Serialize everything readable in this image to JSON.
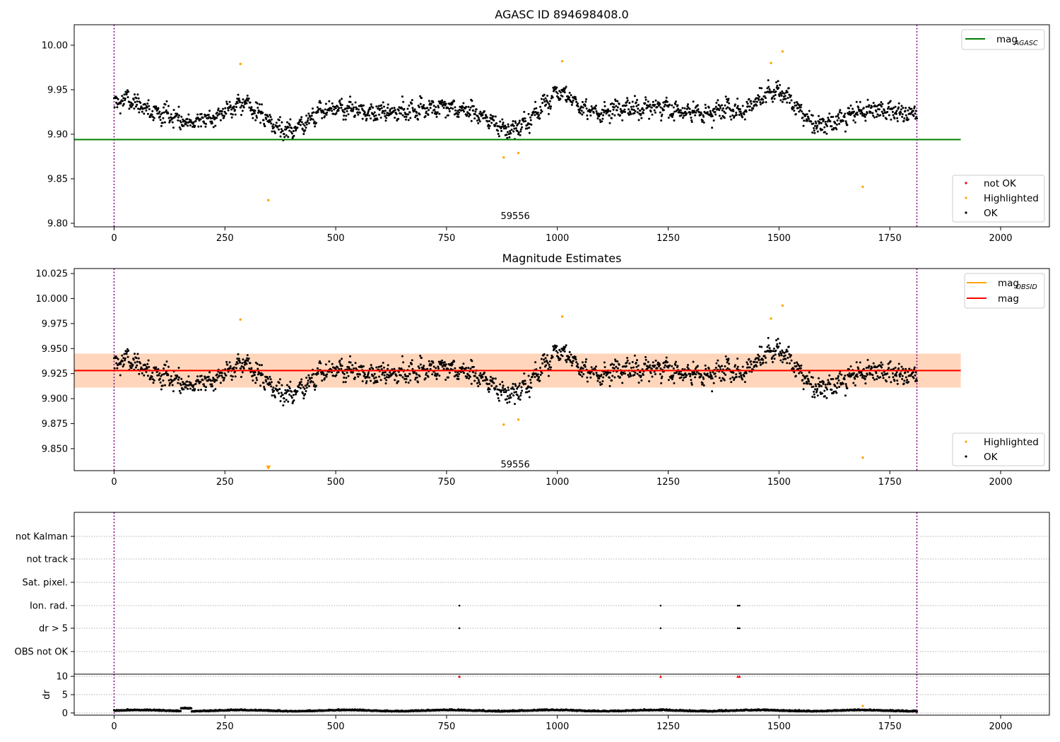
{
  "chart_data": [
    {
      "type": "scatter",
      "title": "AGASC ID 894698408.0",
      "xlim": [
        -90,
        2110
      ],
      "ylim": [
        9.796,
        10.023
      ],
      "x_ticks": [
        0,
        250,
        500,
        750,
        1000,
        1250,
        1500,
        1750,
        2000
      ],
      "y_ticks": [
        9.8,
        9.85,
        9.9,
        9.95,
        10.0
      ],
      "y_tick_labels": [
        "9.80",
        "9.85",
        "9.90",
        "9.95",
        "10.00"
      ],
      "vlines": [
        0,
        1811
      ],
      "vline_color": "#800080",
      "hlines": [
        {
          "name": "mag_AGASC",
          "y": 9.894,
          "x_range": [
            -90,
            1910
          ],
          "color": "#008000"
        }
      ],
      "annotation": {
        "text": "59556",
        "x": 905,
        "y": 9.808
      },
      "series": [
        {
          "name": "not OK",
          "color": "#ff0000",
          "points": []
        },
        {
          "name": "Highlighted",
          "color": "#ffa500",
          "points": [
            [
              285,
              9.979
            ],
            [
              1011,
              9.982
            ],
            [
              1482,
              9.98
            ],
            [
              1508,
              9.993
            ],
            [
              348,
              9.826
            ],
            [
              879,
              9.874
            ],
            [
              912,
              9.879
            ],
            [
              1689,
              9.841
            ]
          ]
        },
        {
          "name": "OK",
          "color": "#000000",
          "generator": {
            "n": 1800,
            "x_start": 0,
            "x_end": 1811,
            "seed": 7,
            "baseline": 9.927,
            "waves": [
              [
                23.0,
                0.011,
                0.5
              ],
              [
                237.0,
                0.007,
                1.1
              ]
            ],
            "dips": [
              [
                190,
                60,
                -0.012
              ],
              [
                395,
                55,
                -0.02
              ],
              [
                900,
                55,
                -0.022
              ],
              [
                1600,
                60,
                -0.018
              ],
              [
                1425,
                20,
                -0.006
              ]
            ],
            "bumps": [
              [
                1005,
                40,
                0.018
              ],
              [
                1500,
                55,
                0.021
              ],
              [
                30,
                30,
                0.01
              ],
              [
                290,
                30,
                0.008
              ]
            ],
            "scatter": 0.0095,
            "ymin": 9.88,
            "ymax": 9.975
          }
        }
      ],
      "legends": [
        {
          "placement": "top-right",
          "entries": [
            {
              "label": "mag",
              "sub": "AGASC",
              "kind": "line",
              "color": "#008000"
            }
          ]
        },
        {
          "placement": "lower-right",
          "entries": [
            {
              "label": "not OK",
              "kind": "dot",
              "color": "#ff0000"
            },
            {
              "label": "Highlighted",
              "kind": "dot",
              "color": "#ffa500"
            },
            {
              "label": "OK",
              "kind": "dot",
              "color": "#000000"
            }
          ]
        }
      ]
    },
    {
      "type": "scatter",
      "title": "Magnitude Estimates",
      "xlim": [
        -90,
        2110
      ],
      "ylim": [
        9.828,
        10.03
      ],
      "x_ticks": [
        0,
        250,
        500,
        750,
        1000,
        1250,
        1500,
        1750,
        2000
      ],
      "y_ticks": [
        9.85,
        9.875,
        9.9,
        9.925,
        9.95,
        9.975,
        10.0,
        10.025
      ],
      "y_tick_labels": [
        "9.850",
        "9.875",
        "9.900",
        "9.925",
        "9.950",
        "9.975",
        "10.000",
        "10.025"
      ],
      "vlines": [
        0,
        1811
      ],
      "vline_color": "#800080",
      "bands": [
        {
          "name": "mag_OBSID band",
          "y": [
            9.911,
            9.945
          ],
          "x_range": [
            -90,
            1910
          ],
          "color": "#ffa500",
          "opacity": 0.22
        },
        {
          "name": "mag band",
          "y": [
            9.911,
            9.945
          ],
          "x_range": [
            -90,
            1910
          ],
          "color": "#ff8090",
          "opacity": 0.2
        }
      ],
      "hlines": [
        {
          "name": "mag_OBSID",
          "y": 9.928,
          "x_range": [
            -90,
            1910
          ],
          "color": "#ffa500"
        },
        {
          "name": "mag",
          "y": 9.928,
          "x_range": [
            -90,
            1910
          ],
          "color": "#ff0000"
        }
      ],
      "annotation": {
        "text": "59556",
        "x": 905,
        "y": 9.834
      },
      "markers": [
        {
          "kind": "triangle-down",
          "x": 348,
          "y": 9.831,
          "color": "#ffa500"
        }
      ],
      "series": [
        {
          "name": "Highlighted",
          "color": "#ffa500",
          "points": [
            [
              285,
              9.979
            ],
            [
              1011,
              9.982
            ],
            [
              1482,
              9.98
            ],
            [
              1508,
              9.993
            ],
            [
              879,
              9.874
            ],
            [
              912,
              9.879
            ],
            [
              1689,
              9.841
            ]
          ]
        },
        {
          "name": "OK",
          "color": "#000000",
          "generator": "same as panel 1"
        }
      ],
      "legends": [
        {
          "placement": "top-right",
          "entries": [
            {
              "label": "mag",
              "sub": "OBSID",
              "kind": "line",
              "color": "#ffa500"
            },
            {
              "label": "mag",
              "sub": "",
              "kind": "line",
              "color": "#ff0000"
            }
          ]
        },
        {
          "placement": "lower-right",
          "entries": [
            {
              "label": "Highlighted",
              "kind": "dot",
              "color": "#ffa500"
            },
            {
              "label": "OK",
              "kind": "dot",
              "color": "#000000"
            }
          ]
        }
      ]
    },
    {
      "type": "scatter",
      "xlim": [
        -90,
        2110
      ],
      "categories": [
        "not Kalman",
        "not track",
        "Sat. pixel.",
        "Ion. rad.",
        "dr > 5",
        "OBS not OK"
      ],
      "vlines": [
        0,
        1811
      ],
      "vline_color": "#800080",
      "flag_points": {
        "Ion. rad.": [
          779,
          1233,
          1407,
          1411
        ],
        "dr > 5": [
          779,
          1233,
          1407,
          1411
        ]
      }
    },
    {
      "type": "scatter",
      "ylabel": "dr",
      "xlim": [
        -90,
        2110
      ],
      "ylim": [
        -0.6,
        10.6
      ],
      "x_ticks": [
        0,
        250,
        500,
        750,
        1000,
        1250,
        1500,
        1750,
        2000
      ],
      "y_ticks": [
        0,
        5,
        10
      ],
      "y_tick_labels": [
        "0",
        "5",
        "10"
      ],
      "vlines": [
        0,
        1811
      ],
      "vline_color": "#800080",
      "red_markers": [
        779,
        1233,
        1407,
        1411
      ],
      "highlighted_points": [
        [
          1689,
          1.9
        ]
      ],
      "series": [
        {
          "name": "dr",
          "color": "#000000",
          "generator": {
            "n": 1800,
            "x_start": 0,
            "x_end": 1811,
            "seed": 11,
            "base": 0.55,
            "scatter": 0.3
          }
        }
      ]
    }
  ]
}
